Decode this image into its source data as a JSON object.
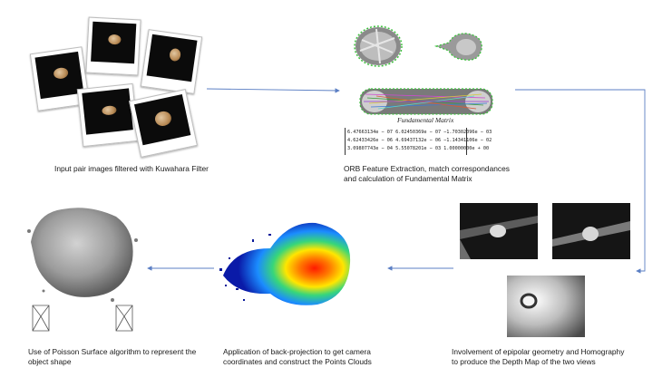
{
  "captions": {
    "step1": "Input pair images filtered with Kuwahara Filter",
    "step2_line1": "ORB Feature Extraction, match correspondances",
    "step2_line2": "and calculation of Fundamental Matrix",
    "step3_line1": "Involvement of epipolar geometry and Homography",
    "step3_line2": "to produce the Depth Map of the two views",
    "step4_line1": "Application of back-projection to get camera",
    "step4_line2": "coordinates and construct the Points Clouds",
    "step5_line1": "Use of Poisson Surface algorithm to represent the",
    "step5_line2": "object shape"
  },
  "fundamental_matrix": {
    "title": "Fundamental Matrix",
    "rows": [
      "6.47663134e − 07    6.02450369e − 07    −1.70302096e − 03",
      "4.62433426e − 06    4.69437132e − 06    −1.14341106e − 02",
      "3.09807743e − 04    5.55078201e − 03     1.00000000e + 00"
    ]
  },
  "colors": {
    "arrow": "#5b7fc4",
    "seed": "#c99a62"
  }
}
